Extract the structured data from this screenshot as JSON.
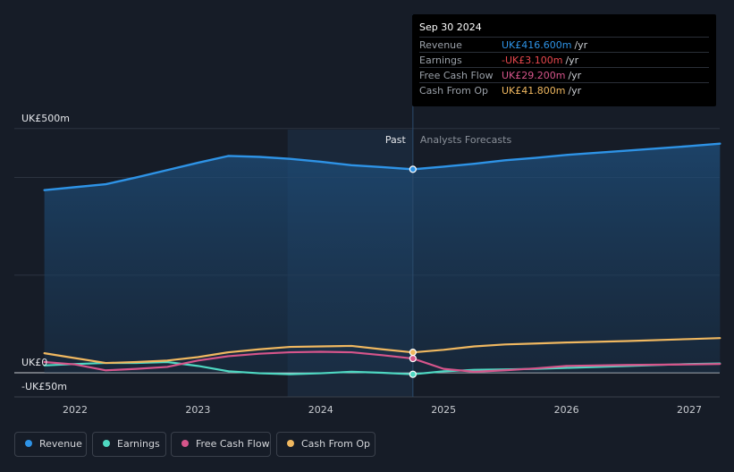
{
  "chart_data": {
    "type": "line",
    "y_axis": {
      "top_label": "UK£500m",
      "zero_label": "UK£0",
      "bottom_label": "-UK£50m",
      "ylim": [
        -50,
        500
      ]
    },
    "x_axis": {
      "tick_labels": [
        "2022",
        "2023",
        "2024",
        "2025",
        "2026",
        "2027"
      ],
      "ticks": [
        2022,
        2023,
        2024,
        2025,
        2026,
        2027
      ],
      "xlim": [
        2021.5,
        2027.25
      ]
    },
    "past_label": "Past",
    "forecast_label": "Analysts Forecasts",
    "divider_x": 2024.75,
    "past_highlight_start": 2023.73,
    "series": [
      {
        "name": "Revenue",
        "color": "#2e93e6",
        "points": [
          [
            2021.75,
            374
          ],
          [
            2022.0,
            380
          ],
          [
            2022.25,
            386
          ],
          [
            2022.5,
            400
          ],
          [
            2022.75,
            415
          ],
          [
            2023.0,
            430
          ],
          [
            2023.25,
            444
          ],
          [
            2023.5,
            442
          ],
          [
            2023.75,
            438
          ],
          [
            2024.0,
            432
          ],
          [
            2024.25,
            425
          ],
          [
            2024.5,
            421
          ],
          [
            2024.75,
            416.6
          ],
          [
            2025.0,
            422
          ],
          [
            2025.25,
            428
          ],
          [
            2025.5,
            435
          ],
          [
            2025.75,
            440
          ],
          [
            2026.0,
            446
          ],
          [
            2026.5,
            455
          ],
          [
            2027.0,
            464
          ],
          [
            2027.25,
            469
          ]
        ]
      },
      {
        "name": "Earnings",
        "color": "#4fd8c2",
        "points": [
          [
            2021.75,
            15
          ],
          [
            2022.0,
            18
          ],
          [
            2022.25,
            20
          ],
          [
            2022.5,
            20
          ],
          [
            2022.75,
            22
          ],
          [
            2023.0,
            14
          ],
          [
            2023.25,
            3
          ],
          [
            2023.5,
            -1
          ],
          [
            2023.75,
            -3
          ],
          [
            2024.0,
            -1
          ],
          [
            2024.25,
            2
          ],
          [
            2024.5,
            0
          ],
          [
            2024.75,
            -3.1
          ],
          [
            2025.0,
            3
          ],
          [
            2025.25,
            6
          ],
          [
            2025.5,
            7
          ],
          [
            2025.75,
            8
          ],
          [
            2026.0,
            10
          ],
          [
            2026.5,
            14
          ],
          [
            2027.0,
            18
          ],
          [
            2027.25,
            19
          ]
        ]
      },
      {
        "name": "Free Cash Flow",
        "color": "#d6558b",
        "points": [
          [
            2021.75,
            22
          ],
          [
            2022.0,
            17
          ],
          [
            2022.25,
            5
          ],
          [
            2022.5,
            8
          ],
          [
            2022.75,
            12
          ],
          [
            2023.0,
            25
          ],
          [
            2023.25,
            34
          ],
          [
            2023.5,
            39
          ],
          [
            2023.75,
            42
          ],
          [
            2024.0,
            43
          ],
          [
            2024.25,
            42
          ],
          [
            2024.5,
            36
          ],
          [
            2024.75,
            29.2
          ],
          [
            2025.0,
            8
          ],
          [
            2025.25,
            2
          ],
          [
            2025.5,
            5
          ],
          [
            2025.75,
            9
          ],
          [
            2026.0,
            14
          ],
          [
            2026.5,
            16
          ],
          [
            2027.0,
            17
          ],
          [
            2027.25,
            18
          ]
        ]
      },
      {
        "name": "Cash From Op",
        "color": "#f0b860",
        "points": [
          [
            2021.75,
            40
          ],
          [
            2022.0,
            30
          ],
          [
            2022.25,
            20
          ],
          [
            2022.5,
            22
          ],
          [
            2022.75,
            25
          ],
          [
            2023.0,
            32
          ],
          [
            2023.25,
            42
          ],
          [
            2023.5,
            48
          ],
          [
            2023.75,
            53
          ],
          [
            2024.0,
            54
          ],
          [
            2024.25,
            55
          ],
          [
            2024.5,
            48
          ],
          [
            2024.75,
            41.8
          ],
          [
            2025.0,
            47
          ],
          [
            2025.25,
            54
          ],
          [
            2025.5,
            58
          ],
          [
            2025.75,
            60
          ],
          [
            2026.0,
            62
          ],
          [
            2026.5,
            65
          ],
          [
            2027.0,
            69
          ],
          [
            2027.25,
            71
          ]
        ]
      }
    ],
    "tooltip": {
      "date": "Sep 30 2024",
      "rows": [
        {
          "label": "Revenue",
          "value": "UK£416.600m",
          "unit": "/yr",
          "color": "#2e93e6"
        },
        {
          "label": "Earnings",
          "value": "-UK£3.100m",
          "unit": "/yr",
          "color": "#e8474d"
        },
        {
          "label": "Free Cash Flow",
          "value": "UK£29.200m",
          "unit": "/yr",
          "color": "#d6558b"
        },
        {
          "label": "Cash From Op",
          "value": "UK£41.800m",
          "unit": "/yr",
          "color": "#f0b860"
        }
      ]
    },
    "legend": [
      {
        "name": "Revenue",
        "color": "#2e93e6"
      },
      {
        "name": "Earnings",
        "color": "#4fd8c2"
      },
      {
        "name": "Free Cash Flow",
        "color": "#d6558b"
      },
      {
        "name": "Cash From Op",
        "color": "#f0b860"
      }
    ]
  }
}
